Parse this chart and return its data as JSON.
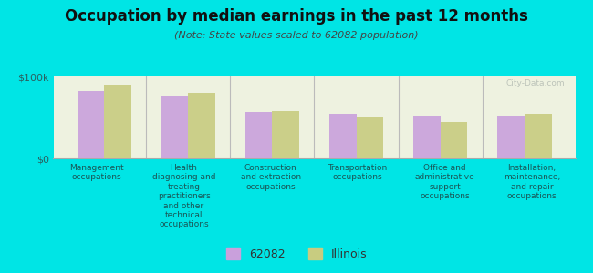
{
  "title": "Occupation by median earnings in the past 12 months",
  "subtitle": "(Note: State values scaled to 62082 population)",
  "background_color": "#00e5e5",
  "plot_bg_color": "#eef2e0",
  "categories": [
    "Management\noccupations",
    "Health\ndiagnosing and\ntreating\npractitioners\nand other\ntechnical\noccupations",
    "Construction\nand extraction\noccupations",
    "Transportation\noccupations",
    "Office and\nadministrative\nsupport\noccupations",
    "Installation,\nmaintenance,\nand repair\noccupations"
  ],
  "values_62082": [
    82000,
    77000,
    57000,
    55000,
    52000,
    51000
  ],
  "values_illinois": [
    90000,
    80000,
    58000,
    50000,
    45000,
    54000
  ],
  "color_62082": "#c9a0dc",
  "color_illinois": "#c8cc80",
  "legend_62082": "62082",
  "legend_illinois": "Illinois",
  "ylim": [
    0,
    100000
  ],
  "yticks": [
    0,
    100000
  ],
  "ytick_labels": [
    "$0",
    "$100k"
  ],
  "watermark": "City-Data.com",
  "title_fontsize": 12,
  "subtitle_fontsize": 8,
  "tick_label_fontsize": 6.5,
  "ytick_fontsize": 8
}
